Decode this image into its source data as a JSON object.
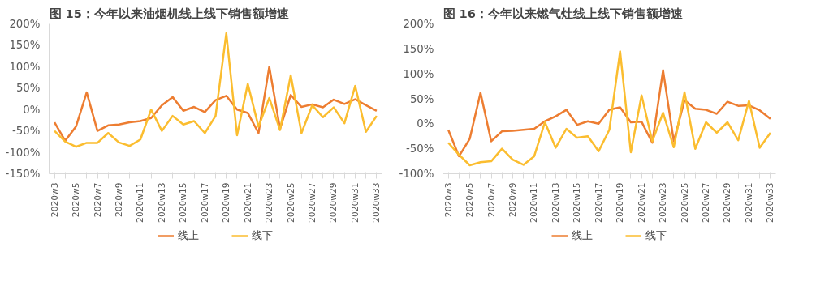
{
  "chart_data": [
    {
      "type": "line",
      "title": "图 15：今年以来油烟机线上线下销售额增速",
      "categories": [
        "2020w3",
        null,
        "2020w5",
        null,
        "2020w7",
        null,
        "2020w9",
        null,
        "2020w11",
        null,
        "2020w13",
        null,
        "2020w15",
        null,
        "2020w17",
        null,
        "2020w19",
        null,
        "2020w21",
        null,
        "2020w23",
        null,
        "2020w25",
        null,
        "2020w27",
        null,
        "2020w29",
        null,
        "2020w31",
        null,
        "2020w33"
      ],
      "series": [
        {
          "name": "线上",
          "color": "#ed7d31",
          "values": [
            -30,
            -73,
            -40,
            40,
            -50,
            -37,
            -35,
            -30,
            -27,
            -20,
            10,
            29,
            -3,
            6,
            -6,
            22,
            32,
            0,
            -8,
            -55,
            100,
            -45,
            34,
            6,
            12,
            5,
            23,
            13,
            24,
            10,
            -3
          ]
        },
        {
          "name": "线下",
          "color": "#fbbd2f",
          "values": [
            -50,
            -75,
            -87,
            -78,
            -78,
            -55,
            -77,
            -85,
            -70,
            0,
            -50,
            -15,
            -35,
            -27,
            -55,
            -15,
            178,
            -60,
            60,
            -40,
            27,
            -48,
            80,
            -55,
            10,
            -18,
            5,
            -32,
            55,
            -52,
            -15
          ]
        }
      ],
      "ylim": [
        -150,
        200
      ],
      "yticks": [
        {
          "value": -150,
          "label": "-150%"
        },
        {
          "value": -100,
          "label": "-100%"
        },
        {
          "value": -50,
          "label": "-50%"
        },
        {
          "value": 0,
          "label": "0%"
        },
        {
          "value": 50,
          "label": "50%"
        },
        {
          "value": 100,
          "label": "100%"
        },
        {
          "value": 150,
          "label": "150%"
        },
        {
          "value": 200,
          "label": "200%"
        }
      ],
      "grid": false,
      "legend": "bottom",
      "marker": "none",
      "line_style": "solid"
    },
    {
      "type": "line",
      "title": "图 16：今年以来燃气灶线上线下销售额增速",
      "categories": [
        "2020w3",
        null,
        "2020w5",
        null,
        "2020w7",
        null,
        "2020w9",
        null,
        "2020w11",
        null,
        "2020w13",
        null,
        "2020w15",
        null,
        "2020w17",
        null,
        "2020w19",
        null,
        "2020w21",
        null,
        "2020w23",
        null,
        "2020w25",
        null,
        "2020w27",
        null,
        "2020w29",
        null,
        "2020w31",
        null,
        "2020w33"
      ],
      "series": [
        {
          "name": "线上",
          "color": "#ed7d31",
          "values": [
            -12,
            -65,
            -30,
            62,
            -35,
            -15,
            -14,
            -12,
            -10,
            5,
            15,
            28,
            -2,
            5,
            0,
            28,
            33,
            3,
            4,
            -38,
            107,
            -35,
            47,
            30,
            28,
            20,
            44,
            36,
            37,
            27,
            10
          ]
        },
        {
          "name": "线下",
          "color": "#fbbd2f",
          "values": [
            -38,
            -62,
            -83,
            -77,
            -75,
            -50,
            -72,
            -82,
            -65,
            3,
            -48,
            -10,
            -28,
            -25,
            -55,
            -12,
            145,
            -57,
            57,
            -35,
            22,
            -47,
            63,
            -50,
            3,
            -18,
            3,
            -33,
            46,
            -48,
            -18
          ]
        }
      ],
      "ylim": [
        -100,
        200
      ],
      "yticks": [
        {
          "value": -100,
          "label": "-100%"
        },
        {
          "value": -50,
          "label": "-50%"
        },
        {
          "value": 0,
          "label": "0%"
        },
        {
          "value": 50,
          "label": "50%"
        },
        {
          "value": 100,
          "label": "100%"
        },
        {
          "value": 150,
          "label": "150%"
        },
        {
          "value": 200,
          "label": "200%"
        }
      ],
      "grid": false,
      "legend": "bottom",
      "marker": "none",
      "line_style": "solid"
    }
  ]
}
